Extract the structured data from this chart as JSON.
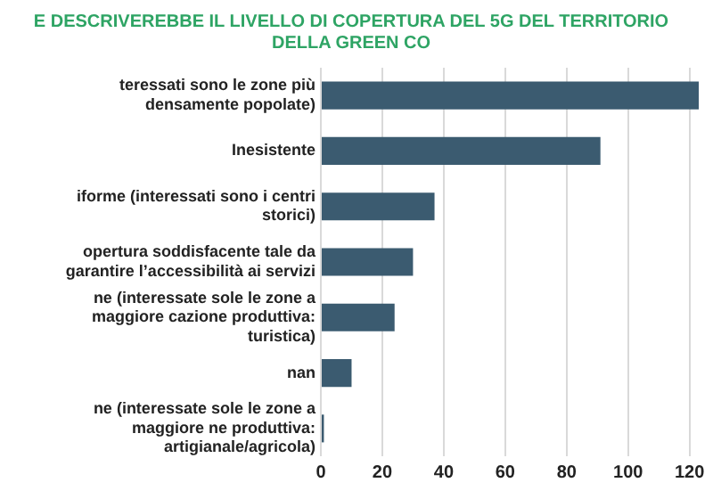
{
  "chart_data": {
    "type": "bar",
    "orientation": "horizontal",
    "title": "E DESCRIVEREBBE IL LIVELLO DI COPERTURA DEL 5G DEL TERRITORIO DELLA GREEN CO",
    "categories": [
      "teressati sono le zone più densamente popolate)",
      "Inesistente",
      "iforme (interessati sono i centri storici)",
      "opertura soddisfacente tale da garantire l’accessibilità ai servizi",
      "ne (interessate sole le zone a maggiore cazione produttiva: turistica)",
      "nan",
      "ne (interessate sole le zone a maggiore ne produttiva: artigianale/agricola)"
    ],
    "values": [
      123,
      91,
      37,
      30,
      24,
      10,
      1
    ],
    "color": "#3b5b70",
    "xlim": [
      0,
      123
    ],
    "xticks": [
      0,
      20,
      40,
      60,
      80,
      100,
      120
    ],
    "grid": "x",
    "legend": false
  }
}
